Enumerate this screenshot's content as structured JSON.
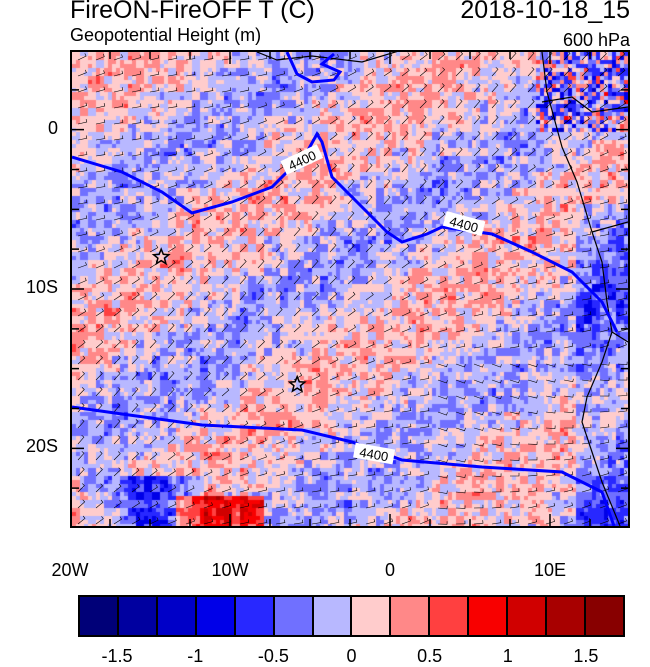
{
  "header": {
    "title": "FireON-FireOFF T (C)",
    "date": "2018-10-18_15",
    "subtitle": "Geopotential Height (m)",
    "level": "600 hPa"
  },
  "map": {
    "lon_range": [
      -20,
      15
    ],
    "lat_range": [
      -25,
      5
    ],
    "y_ticks": [
      {
        "lat": 0,
        "label": "0"
      },
      {
        "lat": -10,
        "label": "10S"
      },
      {
        "lat": -20,
        "label": "20S"
      }
    ],
    "x_ticks": [
      {
        "lon": -20,
        "label": "20W"
      },
      {
        "lon": -10,
        "label": "10W"
      },
      {
        "lon": 0,
        "label": "0"
      },
      {
        "lon": 10,
        "label": "10E"
      }
    ],
    "contour_labels": [
      "4400",
      "4400",
      "4400"
    ],
    "contour_color": "#0000ff"
  },
  "colorbar": {
    "colors": [
      "#000078",
      "#0000a0",
      "#0000c8",
      "#0000e8",
      "#2828ff",
      "#7070ff",
      "#b8b8ff",
      "#ffcccc",
      "#ff8888",
      "#ff4040",
      "#f80000",
      "#d00000",
      "#a80000",
      "#880000"
    ],
    "labels": [
      {
        "v": -1.5,
        "label": "-1.5"
      },
      {
        "v": -1,
        "label": "-1"
      },
      {
        "v": -0.5,
        "label": "-0.5"
      },
      {
        "v": 0,
        "label": "0"
      },
      {
        "v": 0.5,
        "label": "0.5"
      },
      {
        "v": 1,
        "label": "1"
      },
      {
        "v": 1.5,
        "label": "1.5"
      }
    ],
    "range": [
      -1.75,
      1.75
    ]
  }
}
